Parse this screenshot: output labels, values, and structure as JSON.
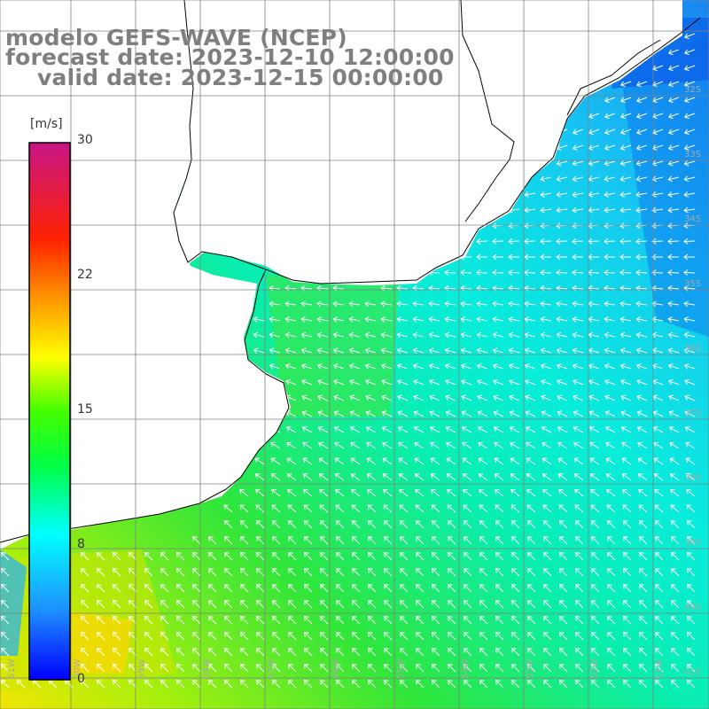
{
  "title": {
    "line1": "modelo GEFS-WAVE (NCEP)",
    "line2": "forecast date: 2023-12-10 12:00:00",
    "line3": "valid date: 2023-12-15 00:00:00"
  },
  "colorbar": {
    "unit": "[m/s]",
    "ticks": [
      "0",
      "8",
      "15",
      "22",
      "30"
    ],
    "tick_values": [
      0,
      8,
      15,
      22,
      30
    ],
    "min": 0,
    "max": 30,
    "gradient": [
      "#0000ff",
      "#1e90ff",
      "#00ffff",
      "#00ff00",
      "#ffff00",
      "#ff8c00",
      "#ff0000",
      "#c71585"
    ]
  },
  "grid": {
    "lat_labels": [
      "32S",
      "33S",
      "34S",
      "35S",
      "36S",
      "37S",
      "38S",
      "39S",
      "40S",
      "41S"
    ],
    "lon_labels": [
      "61W",
      "60W",
      "59W",
      "58W",
      "57W",
      "56W",
      "55W",
      "54W",
      "53W",
      "52W",
      "51W"
    ],
    "line_color": "#808080"
  },
  "map": {
    "field": "wind speed",
    "land_color": "#ffffff",
    "coast_color": "#000000",
    "arrow_color": "#ffffff"
  }
}
